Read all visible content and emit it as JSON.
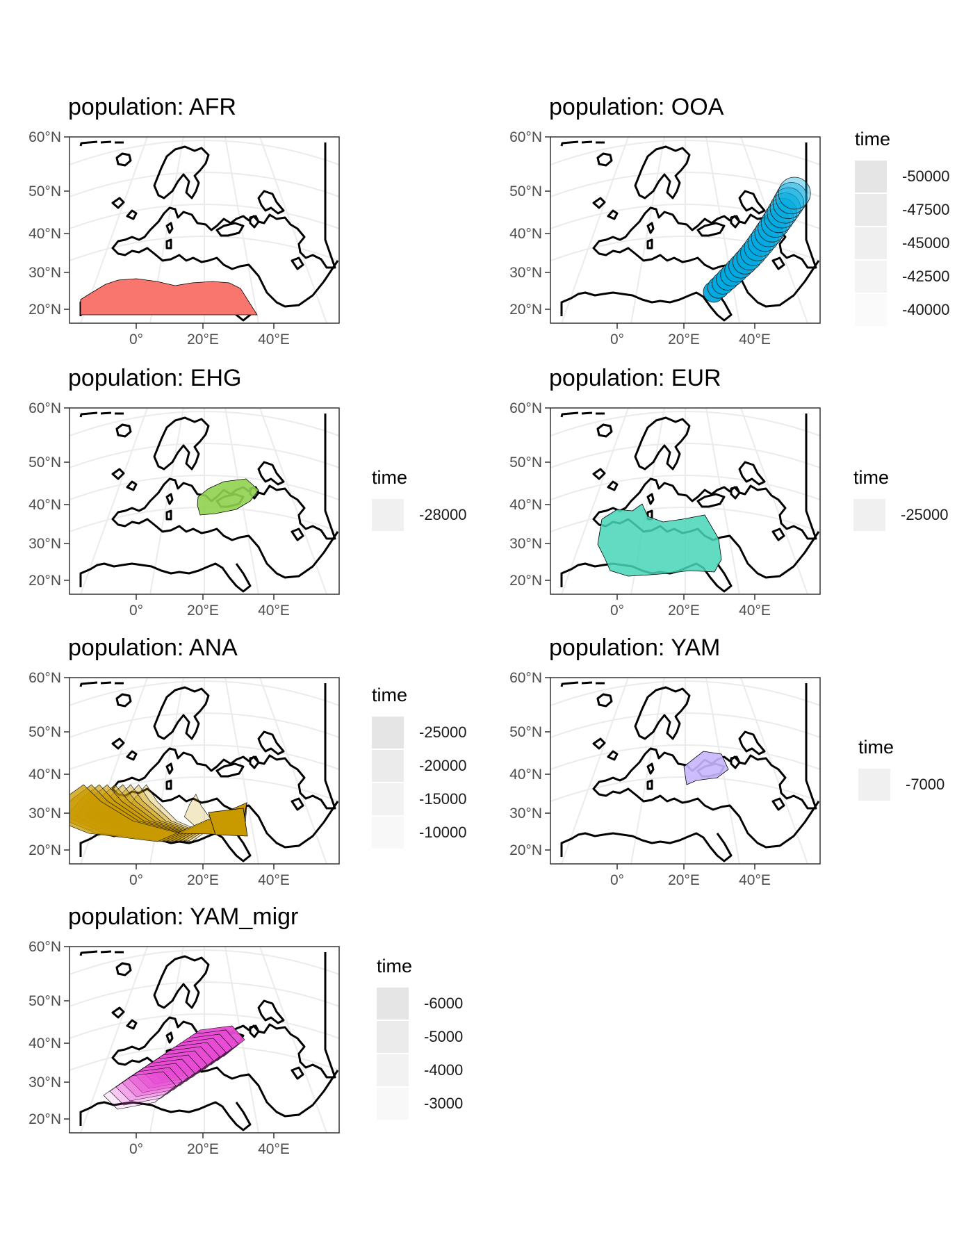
{
  "figure": {
    "panels": [
      {
        "id": "AFR",
        "title": "population: AFR",
        "fill": "#F8766D",
        "shape": "afr",
        "legend": null
      },
      {
        "id": "OOA",
        "title": "population: OOA",
        "fill": "#00A9E0",
        "shape": "ooa",
        "legend": {
          "title": "time",
          "labels": [
            "-50000",
            "-47500",
            "-45000",
            "-42500",
            "-40000"
          ],
          "shades": [
            "#e5e5e5",
            "#eaeaea",
            "#efefef",
            "#f4f4f4",
            "#fafafa"
          ]
        }
      },
      {
        "id": "EHG",
        "title": "population: EHG",
        "fill": "#8FD14F",
        "shape": "ehg",
        "legend": {
          "title": "time",
          "labels": [
            "-28000"
          ],
          "shades": [
            "#f0f0f0"
          ]
        }
      },
      {
        "id": "EUR",
        "title": "population: EUR",
        "fill": "#45D6B8",
        "shape": "eur",
        "legend": {
          "title": "time",
          "labels": [
            "-25000"
          ],
          "shades": [
            "#f0f0f0"
          ]
        }
      },
      {
        "id": "ANA",
        "title": "population: ANA",
        "fill": "#C99A00",
        "shape": "ana",
        "legend": {
          "title": "time",
          "labels": [
            "-25000",
            "-20000",
            "-15000",
            "-10000"
          ],
          "shades": [
            "#e5e5e5",
            "#ebebeb",
            "#f2f2f2",
            "#f8f8f8"
          ]
        }
      },
      {
        "id": "YAM",
        "title": "population: YAM",
        "fill": "#C8B6FF",
        "shape": "yam",
        "legend": {
          "title": "time",
          "labels": [
            "-7000"
          ],
          "shades": [
            "#f0f0f0"
          ]
        }
      },
      {
        "id": "YAM_migr",
        "title": "population: YAM_migr",
        "fill": "#E84CD4",
        "shape": "yammigr",
        "legend": {
          "title": "time",
          "labels": [
            "-6000",
            "-5000",
            "-4000",
            "-3000"
          ],
          "shades": [
            "#e5e5e5",
            "#ebebeb",
            "#f2f2f2",
            "#f8f8f8"
          ]
        }
      }
    ],
    "axes": {
      "y_labels": [
        "60°N",
        "50°N",
        "40°N",
        "30°N",
        "20°N"
      ],
      "x_labels": [
        "0°",
        "20°E",
        "40°E"
      ]
    }
  }
}
